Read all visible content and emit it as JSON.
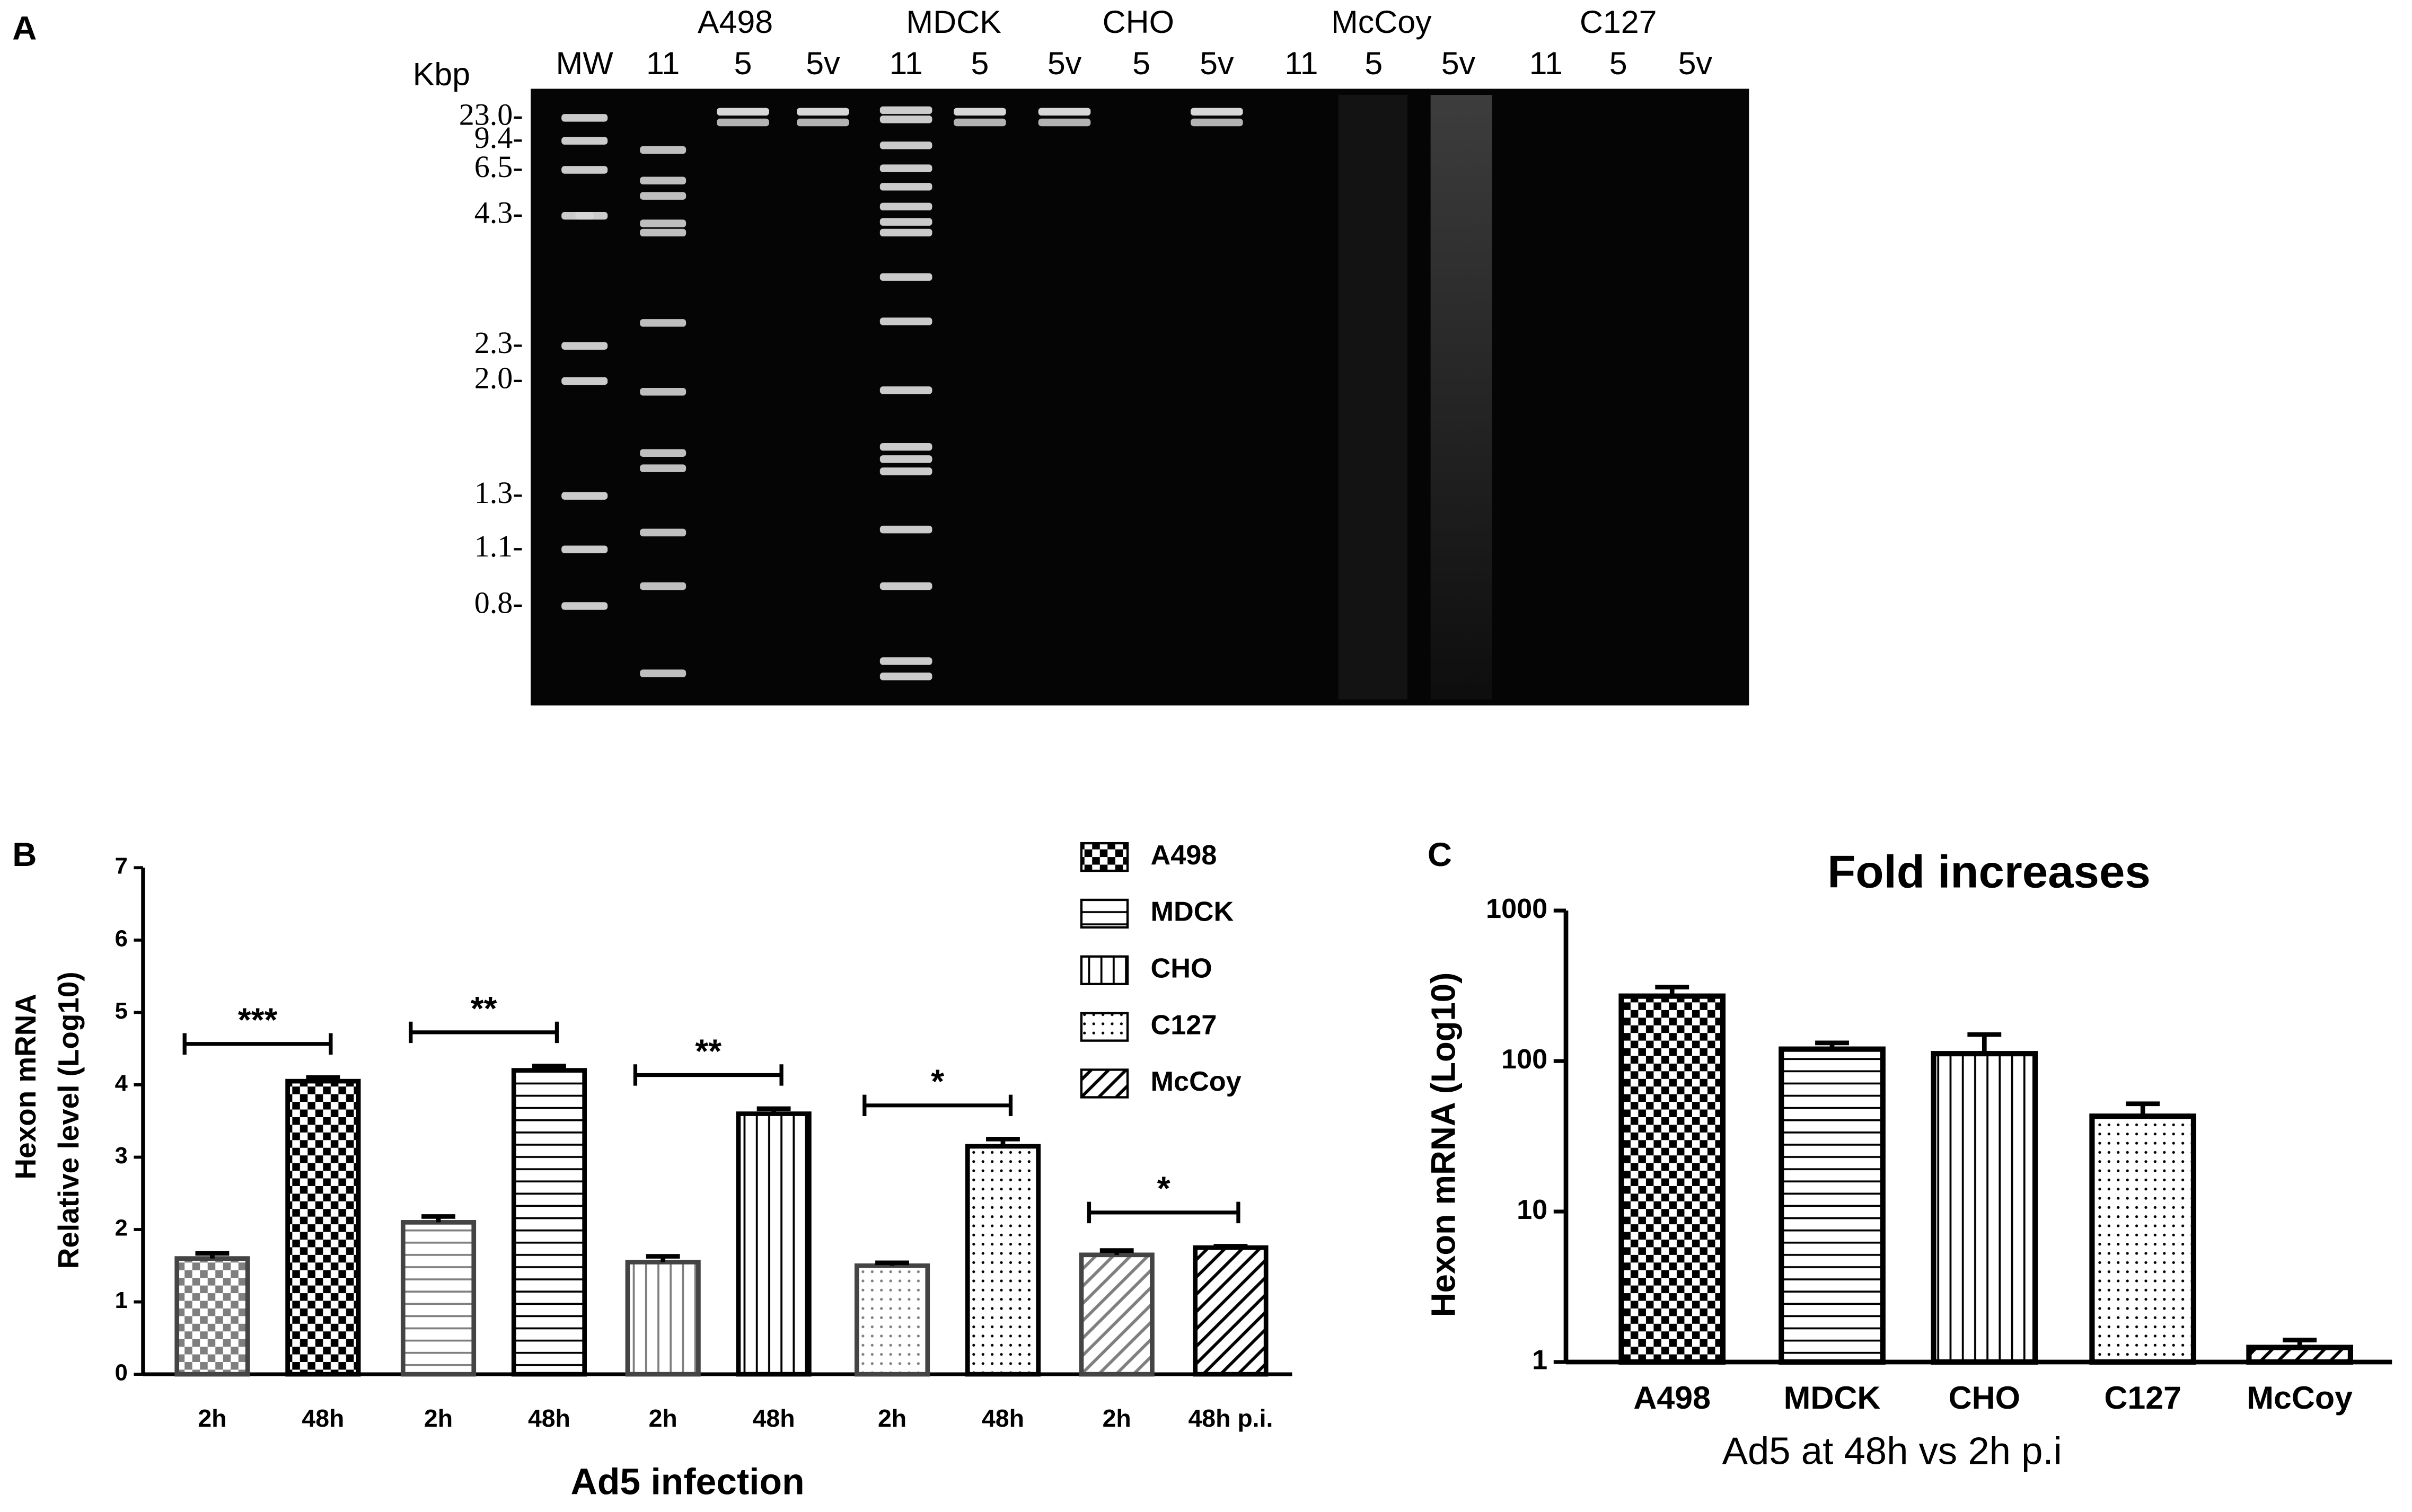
{
  "chart_data": [
    {
      "type": "gel",
      "panel": "A",
      "unit_label": "Kbp",
      "group_labels": [
        "A498",
        "MDCK",
        "CHO",
        "McCoy",
        "C127"
      ],
      "lane_labels": [
        "MW",
        "11",
        "5",
        "5v",
        "11",
        "5",
        "5v",
        "5",
        "5v",
        "11",
        "5",
        "5v",
        "11",
        "5",
        "5v"
      ],
      "size_labels": [
        "23.0-",
        "9.4-",
        "6.5-",
        "4.3-",
        "2.3-",
        "2.0-",
        "1.3-",
        "1.1-",
        "0.8-"
      ]
    },
    {
      "type": "bar",
      "panel": "B",
      "ylabel": [
        "Hexon  mRNA",
        "Relative level (Log10)"
      ],
      "xlabel": "Ad5 infection",
      "categories": [
        "2h",
        "48h",
        "2h",
        "48h",
        "2h",
        "48h",
        "2h",
        "48h",
        "2h",
        "48h p.i."
      ],
      "series": [
        {
          "name": "A498",
          "pattern": "checker",
          "significance": "***",
          "values": [
            1.6,
            4.05,
            null,
            null,
            null,
            null,
            null,
            null,
            null,
            null
          ],
          "errors": [
            0.07,
            0.05,
            null,
            null,
            null,
            null,
            null,
            null,
            null,
            null
          ]
        },
        {
          "name": "MDCK",
          "pattern": "hstripes",
          "significance": "**",
          "values": [
            null,
            null,
            2.1,
            4.2,
            null,
            null,
            null,
            null,
            null,
            null
          ],
          "errors": [
            null,
            null,
            0.08,
            0.06,
            null,
            null,
            null,
            null,
            null,
            null
          ]
        },
        {
          "name": "CHO",
          "pattern": "vstripes",
          "significance": "**",
          "values": [
            null,
            null,
            null,
            null,
            1.55,
            3.6,
            null,
            null,
            null,
            null
          ],
          "errors": [
            null,
            null,
            null,
            null,
            0.08,
            0.07,
            null,
            null,
            null,
            null
          ]
        },
        {
          "name": "C127",
          "pattern": "dots",
          "significance": "*",
          "values": [
            null,
            null,
            null,
            null,
            null,
            null,
            1.5,
            3.15,
            null,
            null
          ],
          "errors": [
            null,
            null,
            null,
            null,
            null,
            null,
            0.04,
            0.1,
            null,
            null
          ]
        },
        {
          "name": "McCoy",
          "pattern": "diag",
          "significance": "*",
          "values": [
            null,
            null,
            null,
            null,
            null,
            null,
            null,
            null,
            1.65,
            1.75
          ],
          "errors": [
            null,
            null,
            null,
            null,
            null,
            null,
            null,
            null,
            0.06,
            0.02
          ]
        }
      ],
      "ylim": [
        0,
        7
      ],
      "yticks": [
        0,
        1,
        2,
        3,
        4,
        5,
        6,
        7
      ],
      "legend": "top-right"
    },
    {
      "type": "bar",
      "panel": "C",
      "title": "Fold increases",
      "ylabel": "Hexon  mRNA (Log10)",
      "xlabel": "Ad5 at 48h vs 2h p.i",
      "log_scale": true,
      "categories": [
        "A498",
        "MDCK",
        "CHO",
        "C127",
        "McCoy"
      ],
      "values": [
        270,
        120,
        112,
        43,
        1.25
      ],
      "errors": [
        40,
        12,
        38,
        9,
        0.15
      ],
      "patterns": [
        "checker",
        "hstripes",
        "vstripes",
        "dots",
        "diag"
      ],
      "ylim": [
        1,
        1000
      ],
      "yticks": [
        1,
        10,
        100,
        1000
      ]
    }
  ]
}
